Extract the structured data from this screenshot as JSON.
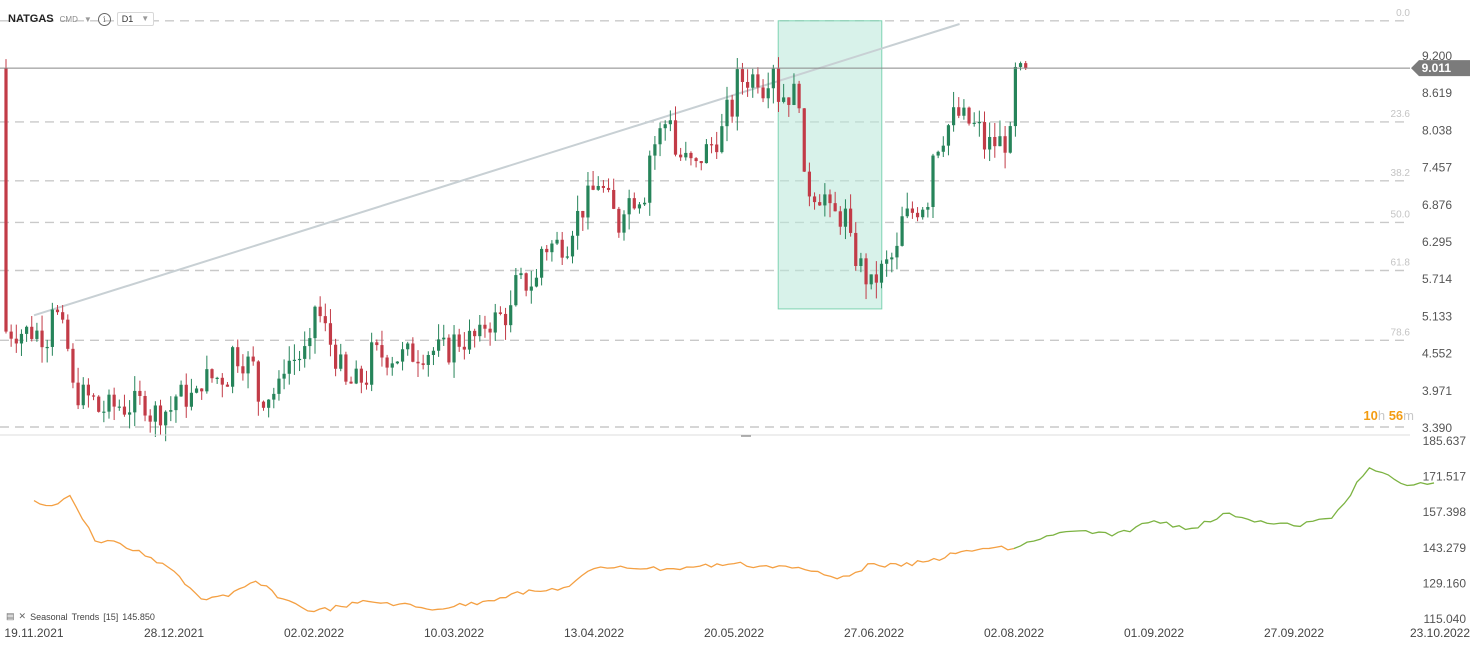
{
  "header": {
    "symbol": "NATGAS",
    "instrument_type": "CMD",
    "timeframe": "D1",
    "icons": [
      "chevron-down-icon",
      "info-icon"
    ]
  },
  "colors": {
    "bull": "#26845a",
    "bear": "#c23b47",
    "fib_zone": "#b8e8d8",
    "trend_before": "#f4a043",
    "trend_after": "#7cb342",
    "price_tag": "#7b7b7b",
    "trendline": "#c8d0d4"
  },
  "timer": {
    "hours": "10",
    "h": "h",
    "minutes": "56",
    "m": "m"
  },
  "indicator": {
    "name": "Seasonal",
    "label": "Trends",
    "period": "[15]",
    "value": "145.850"
  },
  "chart_data": [
    {
      "type": "candlestick",
      "title": "NATGAS D1",
      "current_price": 9.011,
      "y_ticks": [
        "9.200",
        "8.619",
        "8.038",
        "7.457",
        "6.876",
        "6.295",
        "5.714",
        "5.133",
        "4.552",
        "3.971",
        "3.390"
      ],
      "ylim": [
        3.39,
        9.2
      ],
      "x_ticks": [
        "19.11.2021",
        "28.12.2021",
        "02.02.2022",
        "10.03.2022",
        "13.04.2022",
        "20.05.2022",
        "27.06.2022",
        "02.08.2022",
        "01.09.2022",
        "27.09.2022",
        "23.10.2022"
      ],
      "fibonacci": [
        {
          "label": "0.0",
          "price": 9.75
        },
        {
          "label": "23.6",
          "price": 8.17
        },
        {
          "label": "38.2",
          "price": 7.25
        },
        {
          "label": "50.0",
          "price": 6.6
        },
        {
          "label": "61.8",
          "price": 5.85
        },
        {
          "label": "78.6",
          "price": 4.76
        }
      ],
      "highlight_zone": {
        "from": "01.06.2022",
        "to": "29.06.2022",
        "price_high": 9.75,
        "price_low": 5.25
      },
      "trendline": {
        "from": {
          "date": "19.11.2021",
          "price": 5.15
        },
        "to": {
          "date": "19.07.2022",
          "price": 9.7
        }
      },
      "ohlc_points": [
        [
          "19.11.2021",
          5.0,
          4.9
        ],
        [
          "24.11.2021",
          4.8,
          5.4
        ],
        [
          "29.11.2021",
          4.5,
          4.0
        ],
        [
          "06.12.2021",
          3.8,
          3.65
        ],
        [
          "13.12.2021",
          3.75,
          3.7
        ],
        [
          "20.12.2021",
          3.8,
          3.6
        ],
        [
          "28.12.2021",
          3.7,
          3.9
        ],
        [
          "04.01.2022",
          3.85,
          4.15
        ],
        [
          "11.01.2022",
          4.2,
          4.65
        ],
        [
          "18.01.2022",
          4.3,
          3.85
        ],
        [
          "25.01.2022",
          4.0,
          4.4
        ],
        [
          "02.02.2022",
          4.6,
          5.35
        ],
        [
          "09.02.2022",
          4.3,
          4.0
        ],
        [
          "16.02.2022",
          4.2,
          4.55
        ],
        [
          "24.02.2022",
          4.5,
          4.5
        ],
        [
          "03.03.2022",
          4.6,
          4.6
        ],
        [
          "10.03.2022",
          4.6,
          4.75
        ],
        [
          "17.03.2022",
          4.8,
          5.0
        ],
        [
          "24.03.2022",
          5.2,
          5.6
        ],
        [
          "31.03.2022",
          5.7,
          6.2
        ],
        [
          "07.04.2022",
          6.3,
          6.5
        ],
        [
          "13.04.2022",
          7.1,
          7.4
        ],
        [
          "20.04.2022",
          6.5,
          6.9
        ],
        [
          "27.04.2022",
          7.1,
          7.6
        ],
        [
          "04.05.2022",
          8.4,
          7.7
        ],
        [
          "11.05.2022",
          7.4,
          7.6
        ],
        [
          "18.05.2022",
          8.1,
          8.3
        ],
        [
          "20.05.2022",
          8.4,
          8.8
        ],
        [
          "27.05.2022",
          8.9,
          8.6
        ],
        [
          "01.06.2022",
          9.3,
          8.6
        ],
        [
          "07.06.2022",
          8.6,
          7.2
        ],
        [
          "14.06.2022",
          7.0,
          6.7
        ],
        [
          "20.06.2022",
          6.7,
          6.3
        ],
        [
          "27.06.2022",
          5.5,
          5.7
        ],
        [
          "04.07.2022",
          6.2,
          6.6
        ],
        [
          "11.07.2022",
          7.0,
          7.6
        ],
        [
          "18.07.2022",
          8.3,
          8.3
        ],
        [
          "25.07.2022",
          8.0,
          7.8
        ],
        [
          "02.08.2022",
          7.9,
          8.9
        ],
        [
          "05.08.2022",
          8.9,
          9.011
        ]
      ]
    },
    {
      "type": "line",
      "title": "Seasonal Trends [15]",
      "y_ticks": [
        "185.637",
        "171.517",
        "157.398",
        "143.279",
        "129.160",
        "115.040"
      ],
      "ylim": [
        115.04,
        185.637
      ],
      "series": [
        {
          "name": "Seasonal Trends",
          "x": [
            "19.11.2021",
            "24.11.2021",
            "29.11.2021",
            "06.12.2021",
            "13.12.2021",
            "20.12.2021",
            "28.12.2021",
            "04.01.2022",
            "11.01.2022",
            "18.01.2022",
            "25.01.2022",
            "02.02.2022",
            "09.02.2022",
            "16.02.2022",
            "24.02.2022",
            "03.03.2022",
            "10.03.2022",
            "17.03.2022",
            "24.03.2022",
            "31.03.2022",
            "07.04.2022",
            "13.04.2022",
            "20.04.2022",
            "27.04.2022",
            "04.05.2022",
            "11.05.2022",
            "20.05.2022",
            "27.05.2022",
            "03.06.2022",
            "10.06.2022",
            "17.06.2022",
            "27.06.2022",
            "04.07.2022",
            "11.07.2022",
            "18.07.2022",
            "25.07.2022",
            "02.08.2022",
            "09.08.2022",
            "16.08.2022",
            "23.08.2022",
            "01.09.2022",
            "08.09.2022",
            "15.09.2022",
            "22.09.2022",
            "27.09.2022",
            "04.10.2022",
            "11.10.2022",
            "18.10.2022",
            "23.10.2022"
          ],
          "values": [
            162,
            160,
            164,
            146,
            145,
            140,
            134,
            123,
            124,
            130,
            123,
            118,
            120,
            122,
            121,
            119,
            120,
            122,
            125,
            126,
            128,
            135,
            136,
            135,
            135,
            136,
            137,
            136,
            136,
            134,
            131,
            137,
            136,
            138,
            141,
            143,
            143,
            148,
            150,
            148,
            154,
            151,
            157,
            153,
            152,
            155,
            175,
            168,
            169
          ]
        }
      ]
    }
  ]
}
